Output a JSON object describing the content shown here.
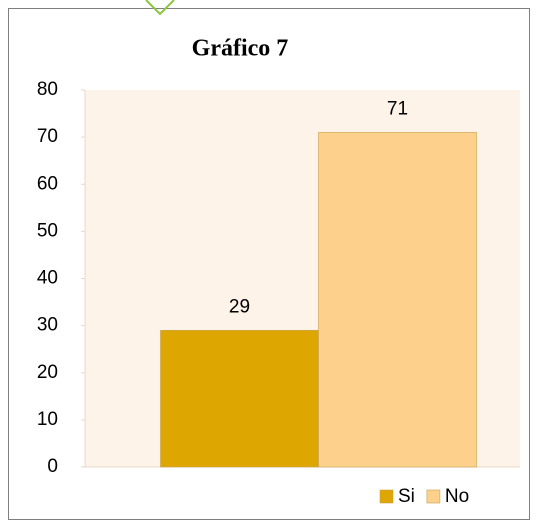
{
  "chart_data": {
    "type": "bar",
    "title": "Gráfico 7",
    "categories": [
      null
    ],
    "series": [
      {
        "name": "Si",
        "color": "#dea600",
        "values": [
          29
        ]
      },
      {
        "name": "No",
        "color": "#fdd18c",
        "values": [
          71
        ]
      }
    ],
    "ylim": [
      0,
      80
    ],
    "yticks": [
      0,
      10,
      20,
      30,
      40,
      50,
      60,
      70,
      80
    ],
    "legend": "bottom-right"
  }
}
